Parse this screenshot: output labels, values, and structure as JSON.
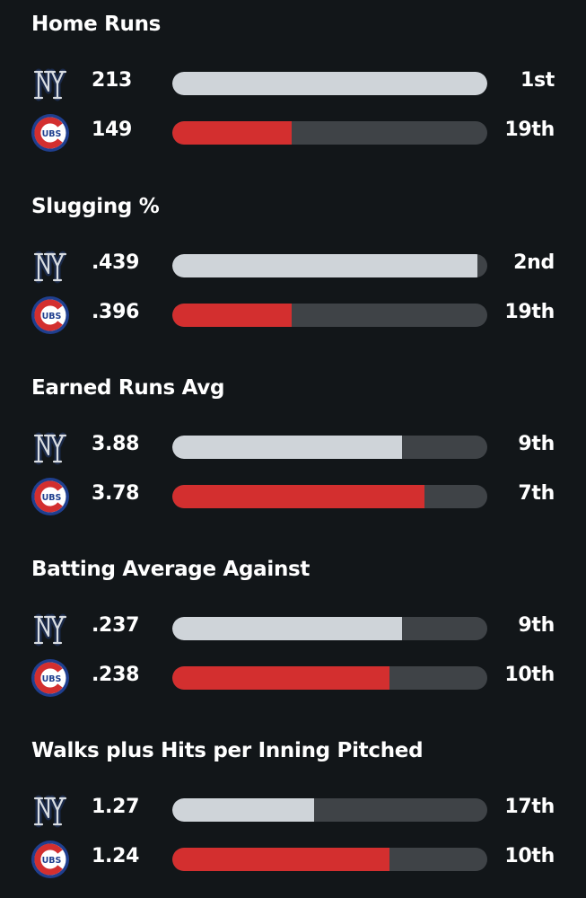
{
  "teams": {
    "home": {
      "name": "Yankees",
      "logo_icon": "yankees-logo-icon",
      "bar_color": "#cfd4d9"
    },
    "away": {
      "name": "Cubs",
      "logo_icon": "cubs-logo-icon",
      "logo_text": "UBS",
      "bar_color": "#d32f2f"
    }
  },
  "stats": [
    {
      "title": "Home Runs",
      "rows": [
        {
          "team": "nyy",
          "value": "213",
          "rank": "1st",
          "fill": 1.0
        },
        {
          "team": "chc",
          "value": "149",
          "rank": "19th",
          "fill": 0.38
        }
      ]
    },
    {
      "title": "Slugging %",
      "rows": [
        {
          "team": "nyy",
          "value": ".439",
          "rank": "2nd",
          "fill": 0.97
        },
        {
          "team": "chc",
          "value": ".396",
          "rank": "19th",
          "fill": 0.38
        }
      ]
    },
    {
      "title": "Earned Runs Avg",
      "rows": [
        {
          "team": "nyy",
          "value": "3.88",
          "rank": "9th",
          "fill": 0.73
        },
        {
          "team": "chc",
          "value": "3.78",
          "rank": "7th",
          "fill": 0.8
        }
      ]
    },
    {
      "title": "Batting Average Against",
      "rows": [
        {
          "team": "nyy",
          "value": ".237",
          "rank": "9th",
          "fill": 0.73
        },
        {
          "team": "chc",
          "value": ".238",
          "rank": "10th",
          "fill": 0.69
        }
      ]
    },
    {
      "title": "Walks plus Hits per Inning Pitched",
      "rows": [
        {
          "team": "nyy",
          "value": "1.27",
          "rank": "17th",
          "fill": 0.45
        },
        {
          "team": "chc",
          "value": "1.24",
          "rank": "10th",
          "fill": 0.69
        }
      ]
    }
  ]
}
